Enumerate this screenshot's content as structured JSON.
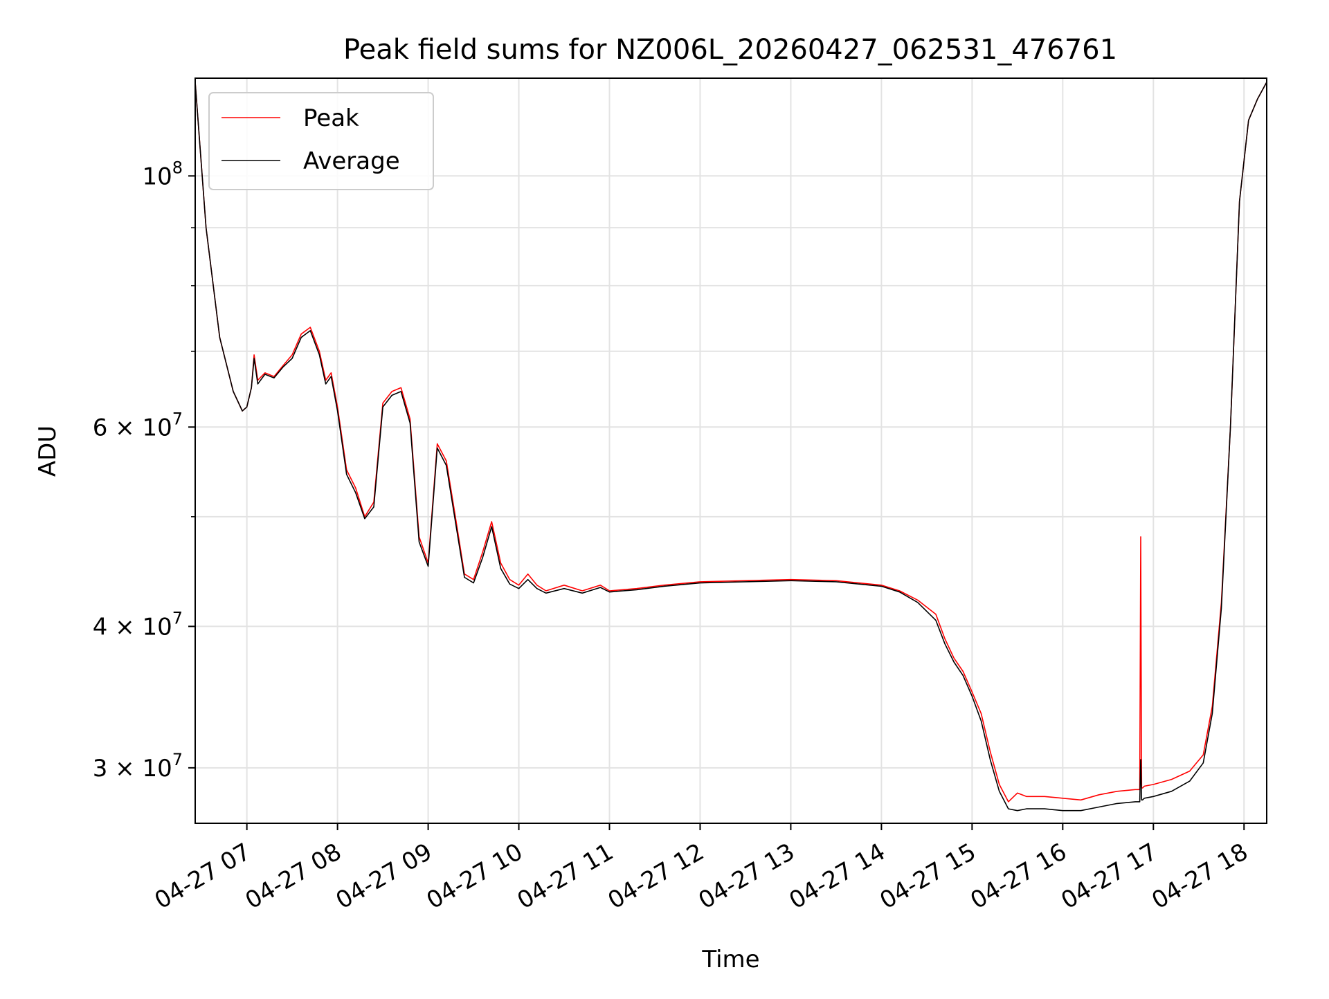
{
  "chart_data": {
    "type": "line",
    "title": "Peak field sums for NZ006L_20260427_062531_476761",
    "xlabel": "Time",
    "ylabel": "ADU",
    "yscale": "log",
    "xlim": [
      6.43,
      18.25
    ],
    "ylim": [
      26800000,
      122000000
    ],
    "grid": true,
    "legend_position": "top-left",
    "x_ticks": [
      {
        "value": 7,
        "label": "04-27 07"
      },
      {
        "value": 8,
        "label": "04-27 08"
      },
      {
        "value": 9,
        "label": "04-27 09"
      },
      {
        "value": 10,
        "label": "04-27 10"
      },
      {
        "value": 11,
        "label": "04-27 11"
      },
      {
        "value": 12,
        "label": "04-27 12"
      },
      {
        "value": 13,
        "label": "04-27 13"
      },
      {
        "value": 14,
        "label": "04-27 14"
      },
      {
        "value": 15,
        "label": "04-27 15"
      },
      {
        "value": 16,
        "label": "04-27 16"
      },
      {
        "value": 17,
        "label": "04-27 17"
      },
      {
        "value": 18,
        "label": "04-27 18"
      }
    ],
    "y_ticks": [
      {
        "value": 100000000,
        "base": "10",
        "exp": "8"
      },
      {
        "value": 60000000,
        "base": "6 × 10",
        "exp": "7"
      },
      {
        "value": 40000000,
        "base": "4 × 10",
        "exp": "7"
      },
      {
        "value": 30000000,
        "base": "3 × 10",
        "exp": "7"
      }
    ],
    "y_minor_ticks": [
      50000000,
      70000000,
      80000000,
      90000000
    ],
    "series": [
      {
        "name": "Peak",
        "color": "#ff0000",
        "x": [
          6.43,
          6.55,
          6.7,
          6.85,
          6.95,
          7.0,
          7.05,
          7.08,
          7.12,
          7.2,
          7.3,
          7.4,
          7.5,
          7.6,
          7.7,
          7.8,
          7.87,
          7.93,
          8.0,
          8.1,
          8.2,
          8.3,
          8.4,
          8.5,
          8.6,
          8.7,
          8.8,
          8.9,
          9.0,
          9.1,
          9.2,
          9.3,
          9.4,
          9.5,
          9.6,
          9.7,
          9.8,
          9.9,
          10.0,
          10.1,
          10.2,
          10.3,
          10.5,
          10.7,
          10.9,
          11.0,
          11.3,
          11.6,
          12.0,
          12.5,
          13.0,
          13.5,
          14.0,
          14.2,
          14.4,
          14.6,
          14.7,
          14.8,
          14.9,
          15.0,
          15.1,
          15.2,
          15.3,
          15.4,
          15.5,
          15.6,
          15.8,
          16.0,
          16.2,
          16.4,
          16.6,
          16.8,
          16.85,
          16.86,
          16.87,
          16.88,
          16.9,
          17.0,
          17.2,
          17.4,
          17.55,
          17.65,
          17.75,
          17.85,
          17.95,
          18.05,
          18.15,
          18.25
        ],
        "y": [
          121000000,
          90000000,
          72000000,
          64500000,
          62000000,
          62500000,
          65000000,
          69500000,
          66000000,
          67000000,
          66500000,
          68000000,
          69500000,
          72500000,
          73500000,
          70000000,
          66000000,
          67000000,
          62500000,
          55000000,
          53000000,
          50000000,
          51500000,
          63000000,
          64500000,
          65000000,
          61000000,
          48000000,
          45500000,
          58000000,
          56000000,
          50000000,
          44500000,
          44000000,
          46500000,
          49500000,
          45500000,
          44000000,
          43500000,
          44500000,
          43500000,
          43000000,
          43500000,
          43000000,
          43500000,
          43000000,
          43200000,
          43500000,
          43800000,
          43900000,
          44000000,
          43900000,
          43500000,
          43000000,
          42200000,
          41000000,
          39000000,
          37500000,
          36500000,
          35000000,
          33500000,
          31000000,
          29000000,
          28000000,
          28500000,
          28300000,
          28300000,
          28200000,
          28100000,
          28400000,
          28600000,
          28700000,
          28700000,
          48000000,
          28800000,
          28800000,
          28900000,
          29000000,
          29300000,
          29800000,
          30800000,
          34000000,
          42000000,
          60000000,
          95000000,
          112000000,
          117000000,
          121000000
        ]
      },
      {
        "name": "Average",
        "color": "#000000",
        "x": [
          6.43,
          6.55,
          6.7,
          6.85,
          6.95,
          7.0,
          7.05,
          7.08,
          7.12,
          7.2,
          7.3,
          7.4,
          7.5,
          7.6,
          7.7,
          7.8,
          7.87,
          7.93,
          8.0,
          8.1,
          8.2,
          8.3,
          8.4,
          8.5,
          8.6,
          8.7,
          8.8,
          8.9,
          9.0,
          9.1,
          9.2,
          9.3,
          9.4,
          9.5,
          9.6,
          9.7,
          9.8,
          9.9,
          10.0,
          10.1,
          10.2,
          10.3,
          10.5,
          10.7,
          10.9,
          11.0,
          11.3,
          11.6,
          12.0,
          12.5,
          13.0,
          13.5,
          14.0,
          14.2,
          14.4,
          14.6,
          14.7,
          14.8,
          14.9,
          15.0,
          15.1,
          15.2,
          15.3,
          15.4,
          15.5,
          15.6,
          15.8,
          16.0,
          16.2,
          16.4,
          16.6,
          16.8,
          16.85,
          16.86,
          16.87,
          16.88,
          16.9,
          17.0,
          17.2,
          17.4,
          17.55,
          17.65,
          17.75,
          17.85,
          17.95,
          18.05,
          18.15,
          18.25
        ],
        "y": [
          121000000,
          90000000,
          72000000,
          64500000,
          62000000,
          62500000,
          65000000,
          69000000,
          65500000,
          66800000,
          66300000,
          67800000,
          69000000,
          72000000,
          73000000,
          69500000,
          65500000,
          66500000,
          62000000,
          54500000,
          52500000,
          49800000,
          51000000,
          62500000,
          64000000,
          64500000,
          60500000,
          47500000,
          45200000,
          57500000,
          55500000,
          49500000,
          44200000,
          43700000,
          46000000,
          49000000,
          45000000,
          43600000,
          43200000,
          44000000,
          43200000,
          42800000,
          43200000,
          42800000,
          43300000,
          42900000,
          43100000,
          43400000,
          43700000,
          43800000,
          43900000,
          43800000,
          43400000,
          42900000,
          42000000,
          40500000,
          38600000,
          37200000,
          36200000,
          34700000,
          33000000,
          30500000,
          28600000,
          27600000,
          27500000,
          27600000,
          27600000,
          27500000,
          27500000,
          27700000,
          27900000,
          28000000,
          28000000,
          30500000,
          28100000,
          28100000,
          28200000,
          28300000,
          28600000,
          29200000,
          30300000,
          33500000,
          41500000,
          60000000,
          95000000,
          112000000,
          117000000,
          121000000
        ]
      }
    ]
  }
}
